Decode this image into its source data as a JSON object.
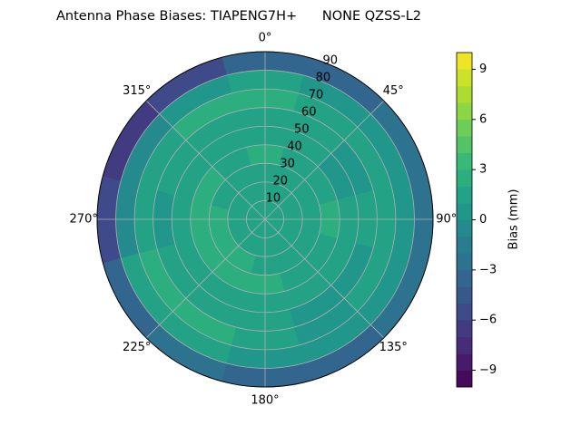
{
  "chart_data": {
    "type": "polar-contour",
    "title": "Antenna Phase Biases: TIAPENG7H+      NONE QZSS-L2",
    "colorbar_label": "Bias (mm)",
    "colormap": "viridis",
    "r_edges": [
      0,
      10,
      20,
      30,
      40,
      50,
      60,
      70,
      80,
      90
    ],
    "theta_edges": [
      -15,
      15,
      45,
      75,
      105,
      135,
      165,
      195,
      225,
      255,
      285,
      315,
      345
    ],
    "z": [
      [
        1,
        1,
        1,
        1,
        1,
        1,
        1,
        1,
        1,
        1,
        1,
        1
      ],
      [
        1,
        1,
        1,
        1,
        1,
        1,
        1,
        1,
        1,
        1,
        1,
        1
      ],
      [
        1.5,
        1,
        1,
        1.5,
        1,
        1,
        1.5,
        2,
        2,
        2,
        1.5,
        1
      ],
      [
        2,
        1.5,
        1,
        2,
        1.5,
        1.5,
        2,
        2.5,
        2,
        2,
        2,
        1.5
      ],
      [
        1,
        1,
        0.5,
        1,
        1,
        1,
        1,
        1.5,
        1.5,
        1,
        1,
        1
      ],
      [
        1,
        1,
        0.5,
        1,
        0.5,
        0.5,
        1,
        1.5,
        1.5,
        0.5,
        1,
        1.5
      ],
      [
        2,
        1.5,
        1,
        1,
        1,
        0.5,
        1.5,
        2,
        2.5,
        1,
        1.5,
        2
      ],
      [
        1,
        0.5,
        0,
        0.5,
        0,
        0,
        0.5,
        1,
        1.5,
        -0.5,
        -0.5,
        0.5
      ],
      [
        -4,
        -4,
        -3,
        -3,
        -3,
        -4,
        -4,
        -3,
        -4,
        -6,
        -7,
        -6
      ]
    ],
    "rlim": [
      0,
      90
    ],
    "rticks": [
      10,
      20,
      30,
      40,
      50,
      60,
      70,
      80,
      90
    ],
    "thetaticks": [
      {
        "value": 0,
        "label": "0°"
      },
      {
        "value": 45,
        "label": "45°"
      },
      {
        "value": 90,
        "label": "90°"
      },
      {
        "value": 135,
        "label": "135°"
      },
      {
        "value": 180,
        "label": "180°"
      },
      {
        "value": 225,
        "label": "225°"
      },
      {
        "value": 270,
        "label": "270°"
      },
      {
        "value": 315,
        "label": "315°"
      }
    ],
    "levels": [
      -10,
      -9,
      -8,
      -7,
      -6,
      -5,
      -4,
      -3,
      -2,
      -1,
      0,
      1,
      2,
      3,
      4,
      5,
      6,
      7,
      8,
      9,
      10
    ],
    "clim": [
      -10,
      10
    ],
    "cticks": [
      {
        "value": -9,
        "label": "−9"
      },
      {
        "value": -6,
        "label": "−6"
      },
      {
        "value": -3,
        "label": "−3"
      },
      0,
      3,
      6,
      9
    ],
    "grid": true
  }
}
